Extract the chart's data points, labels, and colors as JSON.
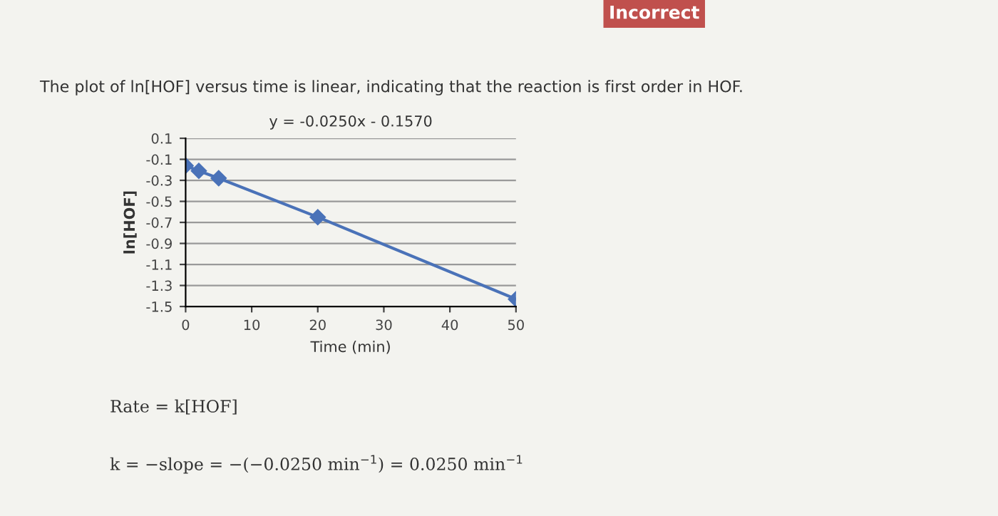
{
  "chart_data": {
    "type": "line",
    "title": "The plot of ln[HOF] versus time is linear, indicating that the reaction is first order in HOF.",
    "subtitle": "y = -0.0250x - 0.1570",
    "xlabel": "Time (min)",
    "ylabel": "ln[HOF]",
    "x": [
      0,
      2,
      5,
      20,
      50
    ],
    "series": [
      {
        "color": "#4a72b8",
        "values": [
          -0.16,
          -0.21,
          -0.28,
          -0.65,
          -1.43
        ]
      }
    ],
    "marker": "diamond",
    "line_style": "solid",
    "grid": "y",
    "xlim": [
      0,
      50
    ],
    "xticks": [
      0,
      10,
      20,
      30,
      40,
      50
    ],
    "ylim": [
      -1.5,
      0.1
    ],
    "yticks": [
      {
        "value": -1.5,
        "label": "-1.5"
      },
      {
        "value": -1.3,
        "label": "-1.3"
      },
      {
        "value": -1.1,
        "label": "-1.1"
      },
      {
        "value": -0.9,
        "label": "-0.9"
      },
      {
        "value": -0.7,
        "label": "-0.7"
      },
      {
        "value": -0.5,
        "label": "-0.5"
      },
      {
        "value": -0.3,
        "label": "-0.3"
      },
      {
        "value": -0.1,
        "label": "-0.1"
      },
      0.1
    ],
    "annotations": [
      "Incorrect",
      "Rate = k[HOF]",
      "k = −slope = −(−0.0250 min$^{−1}$) = 0.0250 min$^{−1}$"
    ]
  }
}
